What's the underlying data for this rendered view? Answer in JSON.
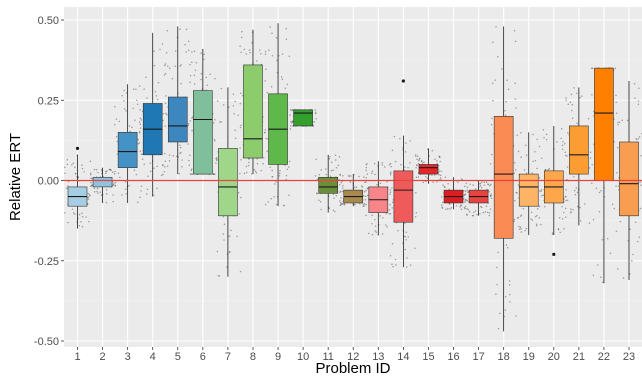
{
  "chart_data": {
    "type": "box",
    "xlabel": "Problem ID",
    "ylabel": "Relative ERT",
    "ylim": [
      -0.5,
      0.52
    ],
    "yticks": [
      {
        "value": 0.5,
        "label": "0.50"
      },
      {
        "value": 0.25,
        "label": "0.25"
      },
      {
        "value": 0.0,
        "label": "0.00"
      },
      {
        "value": -0.25,
        "label": "-0.25"
      },
      {
        "value": -0.5,
        "label": "-0.50"
      }
    ],
    "reference_line": {
      "value": 0.0,
      "color": "#e8433f"
    },
    "grid": true,
    "panel_background": "#ebebeb",
    "categories": [
      "1",
      "2",
      "3",
      "4",
      "5",
      "6",
      "7",
      "8",
      "9",
      "10",
      "11",
      "12",
      "13",
      "14",
      "15",
      "16",
      "17",
      "18",
      "19",
      "20",
      "21",
      "22",
      "23"
    ],
    "boxes": [
      {
        "id": "1",
        "color": "#a6cee3",
        "min": -0.15,
        "q1": -0.08,
        "median": -0.05,
        "q3": -0.02,
        "max": 0.08
      },
      {
        "id": "2",
        "color": "#8fc3e0",
        "min": -0.07,
        "q1": -0.02,
        "median": 0.0,
        "q3": 0.01,
        "max": 0.04
      },
      {
        "id": "3",
        "color": "#4592c6",
        "min": -0.07,
        "q1": 0.04,
        "median": 0.09,
        "q3": 0.15,
        "max": 0.3
      },
      {
        "id": "4",
        "color": "#1f78b4",
        "min": -0.05,
        "q1": 0.08,
        "median": 0.16,
        "q3": 0.24,
        "max": 0.46
      },
      {
        "id": "5",
        "color": "#3d86be",
        "min": 0.02,
        "q1": 0.12,
        "median": 0.17,
        "q3": 0.26,
        "max": 0.48
      },
      {
        "id": "6",
        "color": "#7fbf9c",
        "min": 0.02,
        "q1": 0.02,
        "median": 0.19,
        "q3": 0.28,
        "max": 0.41
      },
      {
        "id": "7",
        "color": "#9fd68a",
        "min": -0.3,
        "q1": -0.11,
        "median": -0.02,
        "q3": 0.1,
        "max": 0.29
      },
      {
        "id": "8",
        "color": "#8ccc6c",
        "min": 0.02,
        "q1": 0.07,
        "median": 0.13,
        "q3": 0.36,
        "max": 0.47
      },
      {
        "id": "9",
        "color": "#5fb84a",
        "min": -0.08,
        "q1": 0.05,
        "median": 0.16,
        "q3": 0.27,
        "max": 0.49
      },
      {
        "id": "10",
        "color": "#33a02c",
        "min": 0.17,
        "q1": 0.17,
        "median": 0.21,
        "q3": 0.22,
        "max": 0.22
      },
      {
        "id": "11",
        "color": "#6a8f3a",
        "min": -0.1,
        "q1": -0.04,
        "median": -0.02,
        "q3": 0.01,
        "max": 0.08
      },
      {
        "id": "12",
        "color": "#a88a4e",
        "min": -0.08,
        "q1": -0.07,
        "median": -0.05,
        "q3": -0.03,
        "max": 0.02
      },
      {
        "id": "13",
        "color": "#f7858a",
        "min": -0.17,
        "q1": -0.1,
        "median": -0.06,
        "q3": -0.02,
        "max": 0.06
      },
      {
        "id": "14",
        "color": "#ef5a5b",
        "min": -0.27,
        "q1": -0.13,
        "median": -0.03,
        "q3": 0.03,
        "max": 0.14
      },
      {
        "id": "15",
        "color": "#e3262a",
        "min": -0.01,
        "q1": 0.02,
        "median": 0.04,
        "q3": 0.05,
        "max": 0.1
      },
      {
        "id": "16",
        "color": "#de1d22",
        "min": -0.09,
        "q1": -0.07,
        "median": -0.05,
        "q3": -0.03,
        "max": 0.01
      },
      {
        "id": "17",
        "color": "#e8433f",
        "min": -0.11,
        "q1": -0.07,
        "median": -0.05,
        "q3": -0.03,
        "max": 0.0
      },
      {
        "id": "18",
        "color": "#fb8b55",
        "min": -0.47,
        "q1": -0.18,
        "median": 0.02,
        "q3": 0.2,
        "max": 0.48
      },
      {
        "id": "19",
        "color": "#fdb467",
        "min": -0.17,
        "q1": -0.08,
        "median": -0.02,
        "q3": 0.02,
        "max": 0.15
      },
      {
        "id": "20",
        "color": "#fda64a",
        "min": -0.17,
        "q1": -0.07,
        "median": -0.02,
        "q3": 0.03,
        "max": 0.17
      },
      {
        "id": "21",
        "color": "#fc9d33",
        "min": -0.14,
        "q1": 0.02,
        "median": 0.08,
        "q3": 0.17,
        "max": 0.29
      },
      {
        "id": "22",
        "color": "#ff7f00",
        "min": -0.32,
        "q1": 0.0,
        "median": 0.21,
        "q3": 0.35,
        "max": 0.35
      },
      {
        "id": "23",
        "color": "#f99e50",
        "min": -0.31,
        "q1": -0.11,
        "median": -0.01,
        "q3": 0.12,
        "max": 0.31
      }
    ],
    "outliers": [
      {
        "id": "1",
        "values": [
          0.1
        ]
      },
      {
        "id": "14",
        "values": [
          0.31
        ]
      },
      {
        "id": "20",
        "values": [
          -0.23
        ]
      }
    ]
  }
}
